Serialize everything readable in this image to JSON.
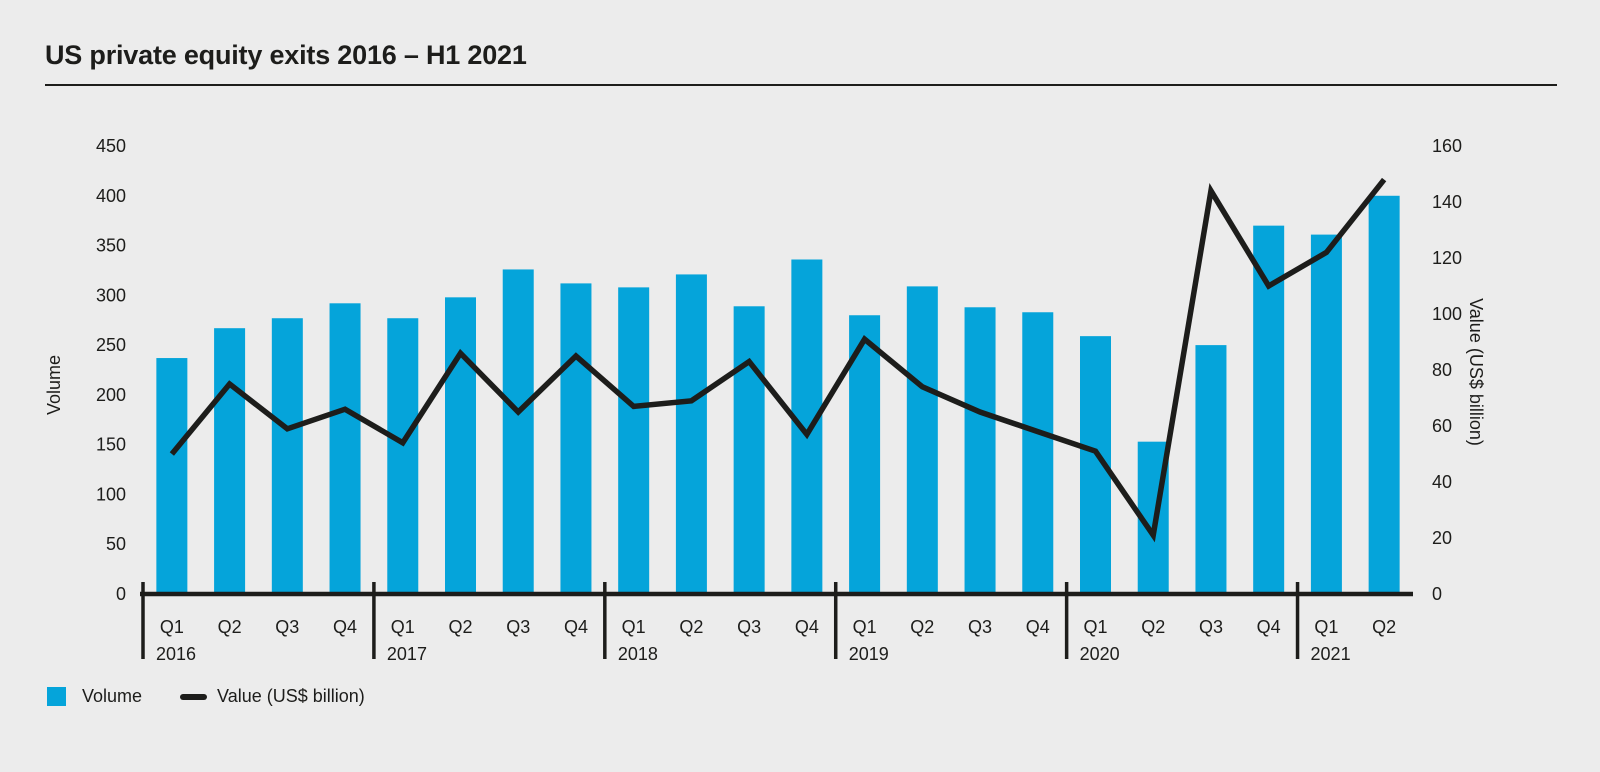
{
  "title": "US private equity exits 2016 – H1 2021",
  "colors": {
    "background": "#ececec",
    "bar": "#05a4da",
    "line": "#1d1d1b",
    "axis": "#1d1d1b",
    "text": "#1d1d1b"
  },
  "chart_data": {
    "type": "bar",
    "title": "US private equity exits 2016 – H1 2021",
    "categories": [
      "Q1",
      "Q2",
      "Q3",
      "Q4",
      "Q1",
      "Q2",
      "Q3",
      "Q4",
      "Q1",
      "Q2",
      "Q3",
      "Q4",
      "Q1",
      "Q2",
      "Q3",
      "Q4",
      "Q1",
      "Q2",
      "Q3",
      "Q4",
      "Q1",
      "Q2"
    ],
    "year_groups": [
      {
        "year": "2016",
        "quarters": 4
      },
      {
        "year": "2017",
        "quarters": 4
      },
      {
        "year": "2018",
        "quarters": 4
      },
      {
        "year": "2019",
        "quarters": 4
      },
      {
        "year": "2020",
        "quarters": 4
      },
      {
        "year": "2021",
        "quarters": 2
      }
    ],
    "series": [
      {
        "name": "Volume",
        "render": "bar",
        "axis": "left",
        "color": "#05a4da",
        "values": [
          237,
          267,
          277,
          292,
          277,
          298,
          326,
          312,
          308,
          321,
          289,
          336,
          280,
          309,
          288,
          283,
          259,
          153,
          250,
          370,
          361,
          400
        ]
      },
      {
        "name": "Value (US$ billion)",
        "render": "line",
        "axis": "right",
        "color": "#1d1d1b",
        "values": [
          50,
          75,
          59,
          66,
          54,
          86,
          65,
          85,
          67,
          69,
          83,
          57,
          91,
          74,
          65,
          58,
          51,
          21,
          144,
          110,
          122,
          148
        ]
      }
    ],
    "left_axis": {
      "label": "Volume",
      "min": 0,
      "max": 450,
      "ticks": [
        0,
        50,
        100,
        150,
        200,
        250,
        300,
        350,
        400,
        450
      ]
    },
    "right_axis": {
      "label": "Value (US$ billion)",
      "min": 0,
      "max": 160,
      "ticks": [
        0,
        20,
        40,
        60,
        80,
        100,
        120,
        140,
        160
      ]
    },
    "grid": false,
    "legend_position": "bottom-left",
    "legend": [
      {
        "label": "Volume",
        "swatch": "square",
        "color": "#05a4da"
      },
      {
        "label": "Value (US$ billion)",
        "swatch": "line",
        "color": "#1d1d1b"
      }
    ]
  }
}
